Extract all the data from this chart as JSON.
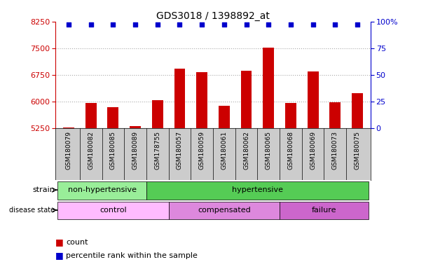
{
  "title": "GDS3018 / 1398892_at",
  "samples": [
    "GSM180079",
    "GSM180082",
    "GSM180085",
    "GSM180089",
    "GSM178755",
    "GSM180057",
    "GSM180059",
    "GSM180061",
    "GSM180062",
    "GSM180065",
    "GSM180068",
    "GSM180069",
    "GSM180073",
    "GSM180075"
  ],
  "counts": [
    5270,
    5950,
    5850,
    5310,
    6040,
    6920,
    6820,
    5870,
    6860,
    7510,
    5950,
    6840,
    5980,
    6230
  ],
  "bar_color": "#cc0000",
  "dot_color": "#0000cc",
  "ylim_left": [
    5250,
    8250
  ],
  "yticks_left": [
    5250,
    6000,
    6750,
    7500,
    8250
  ],
  "ylim_right": [
    0,
    100
  ],
  "yticks_right": [
    0,
    25,
    50,
    75,
    100
  ],
  "left_axis_color": "#cc0000",
  "right_axis_color": "#0000cc",
  "grid_color": "#aaaaaa",
  "strain_groups": [
    {
      "label": "non-hypertensive",
      "start": 0,
      "end": 4,
      "color": "#99ee99"
    },
    {
      "label": "hypertensive",
      "start": 4,
      "end": 14,
      "color": "#55cc55"
    }
  ],
  "disease_groups": [
    {
      "label": "control",
      "start": 0,
      "end": 5,
      "color": "#ffbbff"
    },
    {
      "label": "compensated",
      "start": 5,
      "end": 10,
      "color": "#dd88dd"
    },
    {
      "label": "failure",
      "start": 10,
      "end": 14,
      "color": "#cc66cc"
    }
  ],
  "tick_bg_color": "#cccccc",
  "bar_width": 0.5,
  "background_color": "#ffffff"
}
